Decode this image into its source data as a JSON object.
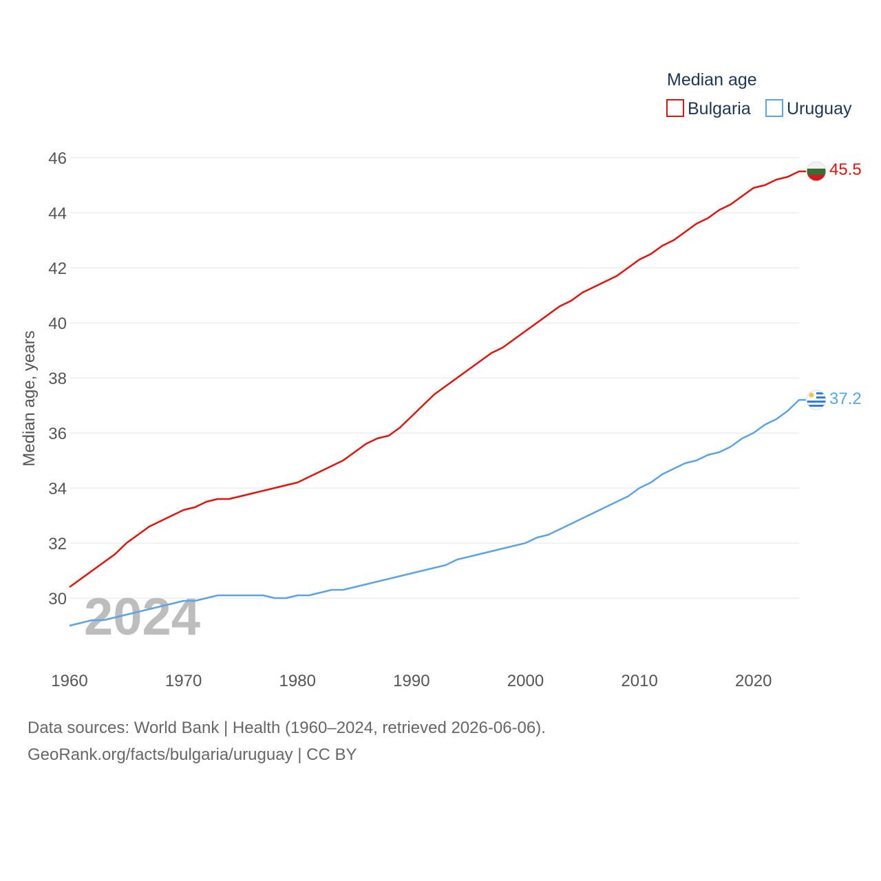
{
  "chart_data": {
    "type": "line",
    "title": "Median age",
    "ylabel": "Median age, years",
    "xlabel": "",
    "xlim": [
      1960,
      2024
    ],
    "ylim": [
      28,
      46.5
    ],
    "y_ticks": [
      30,
      32,
      34,
      36,
      38,
      40,
      42,
      44,
      46
    ],
    "x_ticks": [
      1960,
      1970,
      1980,
      1990,
      2000,
      2010,
      2020
    ],
    "grid": true,
    "legend_position": "top-right",
    "year_watermark": "2024",
    "series": [
      {
        "name": "Bulgaria",
        "color": "#e3120b",
        "end_label": "45.5",
        "x": [
          1960,
          1961,
          1962,
          1963,
          1964,
          1965,
          1966,
          1967,
          1968,
          1969,
          1970,
          1971,
          1972,
          1973,
          1974,
          1975,
          1976,
          1977,
          1978,
          1979,
          1980,
          1981,
          1982,
          1983,
          1984,
          1985,
          1986,
          1987,
          1988,
          1989,
          1990,
          1991,
          1992,
          1993,
          1994,
          1995,
          1996,
          1997,
          1998,
          1999,
          2000,
          2001,
          2002,
          2003,
          2004,
          2005,
          2006,
          2007,
          2008,
          2009,
          2010,
          2011,
          2012,
          2013,
          2014,
          2015,
          2016,
          2017,
          2018,
          2019,
          2020,
          2021,
          2022,
          2023,
          2024
        ],
        "values": [
          30.4,
          30.7,
          31.0,
          31.3,
          31.6,
          32.0,
          32.3,
          32.6,
          32.8,
          33.0,
          33.2,
          33.3,
          33.5,
          33.6,
          33.6,
          33.7,
          33.8,
          33.9,
          34.0,
          34.1,
          34.2,
          34.4,
          34.6,
          34.8,
          35.0,
          35.3,
          35.6,
          35.8,
          35.9,
          36.2,
          36.6,
          37.0,
          37.4,
          37.7,
          38.0,
          38.3,
          38.6,
          38.9,
          39.1,
          39.4,
          39.7,
          40.0,
          40.3,
          40.6,
          40.8,
          41.1,
          41.3,
          41.5,
          41.7,
          42.0,
          42.3,
          42.5,
          42.8,
          43.0,
          43.3,
          43.6,
          43.8,
          44.1,
          44.3,
          44.6,
          44.9,
          45.0,
          45.2,
          45.3,
          45.5
        ]
      },
      {
        "name": "Uruguay",
        "color": "#5ba3e6",
        "end_label": "37.2",
        "x": [
          1960,
          1961,
          1962,
          1963,
          1964,
          1965,
          1966,
          1967,
          1968,
          1969,
          1970,
          1971,
          1972,
          1973,
          1974,
          1975,
          1976,
          1977,
          1978,
          1979,
          1980,
          1981,
          1982,
          1983,
          1984,
          1985,
          1986,
          1987,
          1988,
          1989,
          1990,
          1991,
          1992,
          1993,
          1994,
          1995,
          1996,
          1997,
          1998,
          1999,
          2000,
          2001,
          2002,
          2003,
          2004,
          2005,
          2006,
          2007,
          2008,
          2009,
          2010,
          2011,
          2012,
          2013,
          2014,
          2015,
          2016,
          2017,
          2018,
          2019,
          2020,
          2021,
          2022,
          2023,
          2024
        ],
        "values": [
          29.0,
          29.1,
          29.2,
          29.2,
          29.3,
          29.4,
          29.5,
          29.6,
          29.7,
          29.8,
          29.9,
          29.9,
          30.0,
          30.1,
          30.1,
          30.1,
          30.1,
          30.1,
          30.0,
          30.0,
          30.1,
          30.1,
          30.2,
          30.3,
          30.3,
          30.4,
          30.5,
          30.6,
          30.7,
          30.8,
          30.9,
          31.0,
          31.1,
          31.2,
          31.4,
          31.5,
          31.6,
          31.7,
          31.8,
          31.9,
          32.0,
          32.2,
          32.3,
          32.5,
          32.7,
          32.9,
          33.1,
          33.3,
          33.5,
          33.7,
          34.0,
          34.2,
          34.5,
          34.7,
          34.9,
          35.0,
          35.2,
          35.3,
          35.5,
          35.8,
          36.0,
          36.3,
          36.5,
          36.8,
          37.2
        ]
      }
    ]
  },
  "footer": {
    "line1": "Data sources: World Bank | Health (1960–2024, retrieved 2026-06-06).",
    "line2": "GeoRank.org/facts/bulgaria/uruguay | CC BY"
  }
}
